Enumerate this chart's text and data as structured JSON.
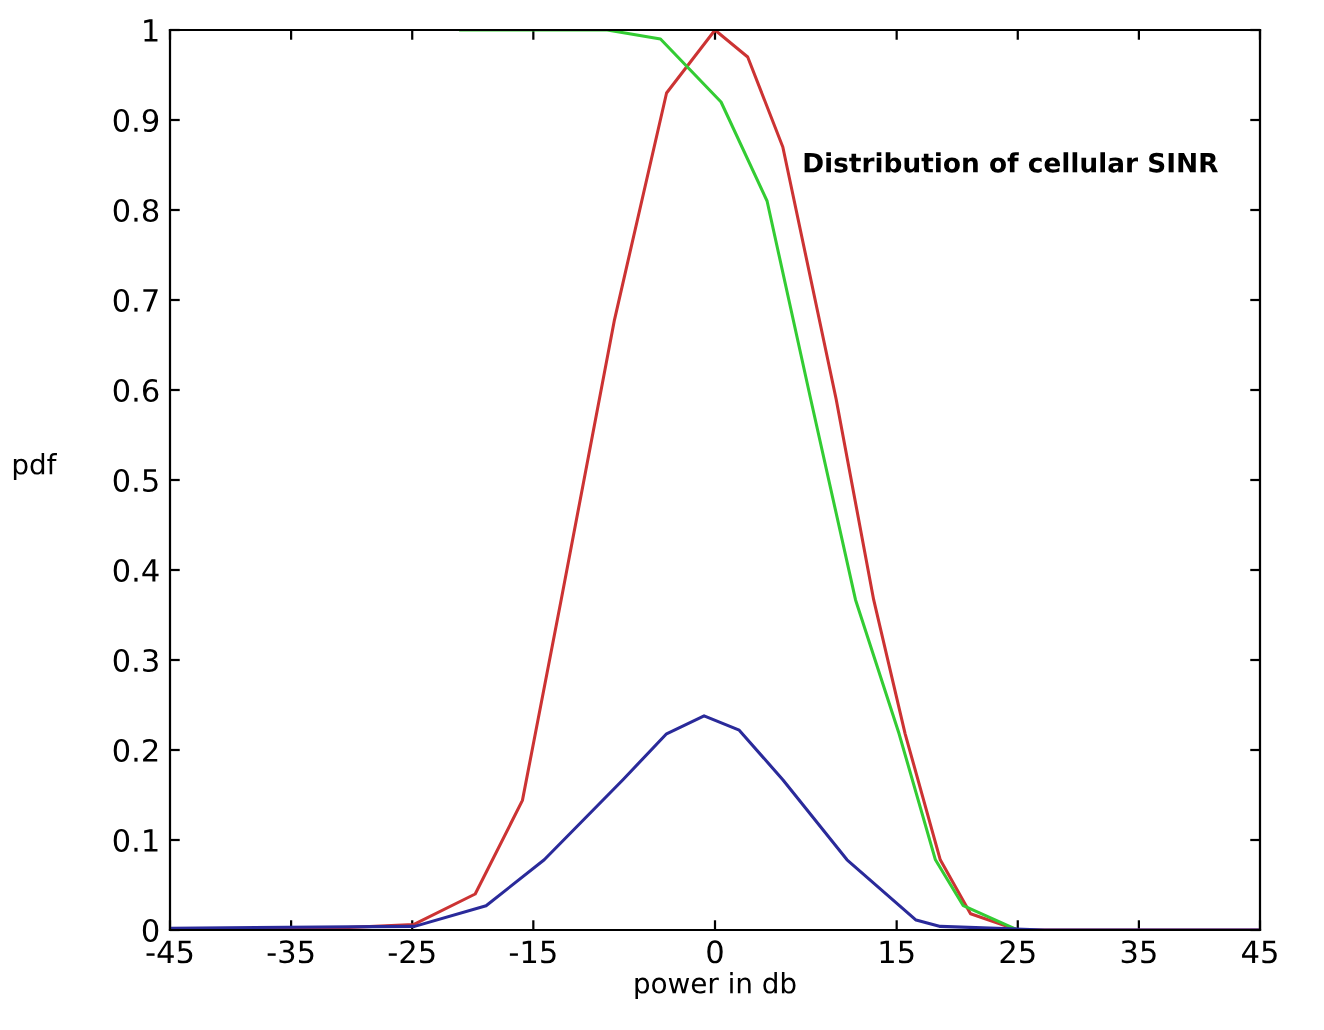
{
  "chart_data": {
    "type": "line",
    "xlabel": "power in db",
    "ylabel": "pdf",
    "annotations": [
      "Distribution of cellular SINR"
    ],
    "xlim": [
      -45,
      45
    ],
    "ylim": [
      0,
      1
    ],
    "xticks": [
      -45,
      -35,
      -25,
      -15,
      0,
      15,
      25,
      35,
      45
    ],
    "yticks": [
      0,
      0.1,
      0.2,
      0.3,
      0.4,
      0.5,
      0.6,
      0.7,
      0.8,
      0.9,
      1
    ],
    "grid": false,
    "marker": "none",
    "line_style": "solid",
    "series": [
      {
        "color": "#cc3333",
        "x": [
          -45,
          -31.7,
          -24.9,
          -19.8,
          -15.9,
          -12.7,
          -8.3,
          -4,
          0,
          2.7,
          5.6,
          10,
          13.1,
          15.7,
          18.6,
          21.1,
          25,
          45
        ],
        "values": [
          0,
          0.002,
          0.006,
          0.04,
          0.144,
          0.367,
          0.678,
          0.93,
          1,
          0.97,
          0.87,
          0.59,
          0.367,
          0.218,
          0.078,
          0.018,
          0,
          0
        ]
      },
      {
        "color": "#33cc33",
        "x": [
          -21,
          -13.3,
          -8.9,
          -4.5,
          0.5,
          4.3,
          7.9,
          11.6,
          15.2,
          18.2,
          20.5,
          25
        ],
        "values": [
          1,
          1,
          1,
          0.99,
          0.92,
          0.81,
          0.59,
          0.367,
          0.218,
          0.078,
          0.027,
          0
        ]
      },
      {
        "color": "#2a2a9a",
        "x": [
          -45,
          -24.8,
          -18.9,
          -14.1,
          -7.6,
          -4,
          -0.9,
          2,
          5.6,
          10.9,
          16.6,
          18.6,
          27.2,
          45
        ],
        "values": [
          0.002,
          0.004,
          0.027,
          0.078,
          0.167,
          0.218,
          0.238,
          0.222,
          0.167,
          0.078,
          0.011,
          0.004,
          0,
          0
        ]
      }
    ]
  }
}
